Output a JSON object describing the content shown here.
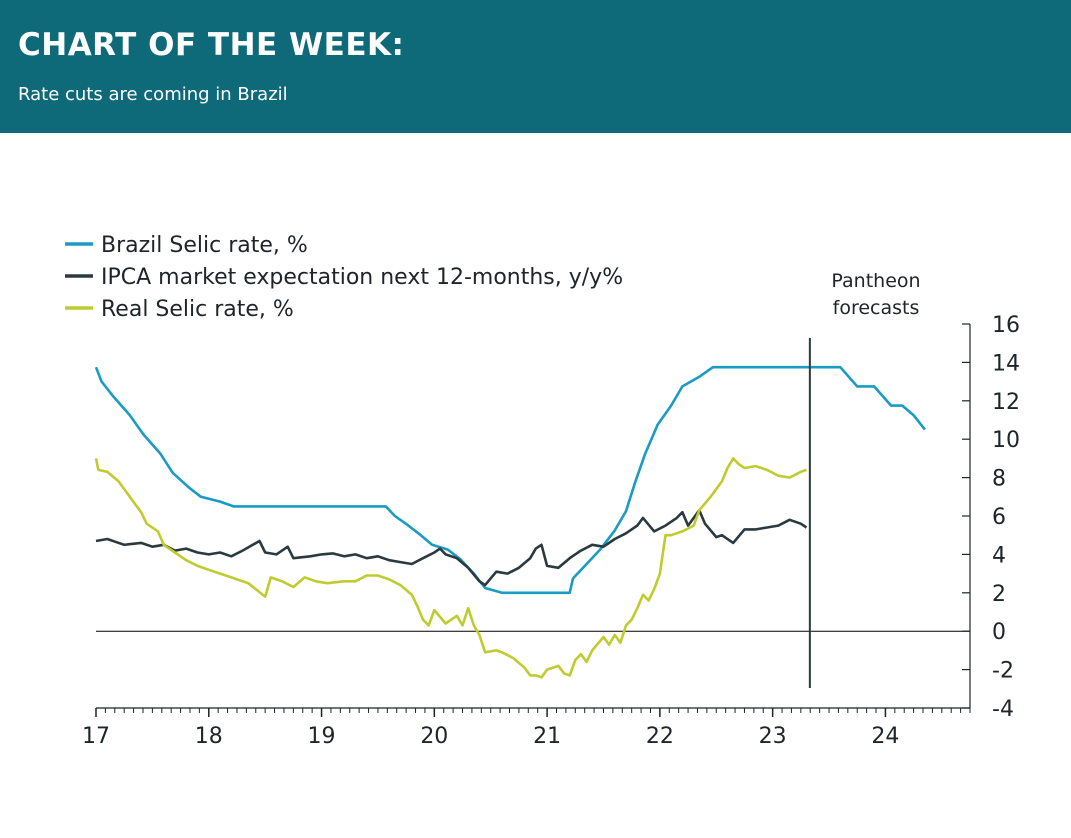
{
  "header": {
    "title": "CHART OF THE WEEK:",
    "subtitle": "Rate cuts are coming in Brazil"
  },
  "colors": {
    "banner": "#0e6a78",
    "selic": "#1a9bc4",
    "ipca": "#2a3a3e",
    "real": "#bfcc2e"
  },
  "chart_data": {
    "type": "line",
    "x_axis": {
      "min": 17,
      "max": 24.75,
      "ticks": [
        "17",
        "18",
        "19",
        "20",
        "21",
        "22",
        "23",
        "24"
      ]
    },
    "y_axis": {
      "side": "right",
      "min": -4,
      "max": 16,
      "ticks": [
        "16",
        "14",
        "12",
        "10",
        "8",
        "6",
        "4",
        "2",
        "0",
        "-2",
        "-4"
      ]
    },
    "grid": false,
    "legend_position": "top-left",
    "annotation": {
      "lines": [
        "Pantheon",
        "forecasts"
      ],
      "x": 23.33
    },
    "series": [
      {
        "name": "Brazil Selic rate, %",
        "color": "#1a9bc4",
        "points": [
          [
            17.0,
            13.75
          ],
          [
            17.05,
            13.0
          ],
          [
            17.15,
            12.25
          ],
          [
            17.3,
            11.25
          ],
          [
            17.42,
            10.25
          ],
          [
            17.57,
            9.25
          ],
          [
            17.68,
            8.25
          ],
          [
            17.82,
            7.5
          ],
          [
            17.93,
            7.0
          ],
          [
            18.1,
            6.75
          ],
          [
            18.22,
            6.5
          ],
          [
            19.57,
            6.5
          ],
          [
            19.65,
            6.0
          ],
          [
            19.77,
            5.5
          ],
          [
            19.88,
            5.0
          ],
          [
            19.98,
            4.5
          ],
          [
            20.12,
            4.25
          ],
          [
            20.23,
            3.75
          ],
          [
            20.35,
            3.0
          ],
          [
            20.45,
            2.25
          ],
          [
            20.6,
            2.0
          ],
          [
            21.2,
            2.0
          ],
          [
            21.23,
            2.75
          ],
          [
            21.35,
            3.5
          ],
          [
            21.47,
            4.25
          ],
          [
            21.6,
            5.25
          ],
          [
            21.7,
            6.25
          ],
          [
            21.78,
            7.75
          ],
          [
            21.87,
            9.25
          ],
          [
            21.98,
            10.75
          ],
          [
            22.1,
            11.75
          ],
          [
            22.2,
            12.75
          ],
          [
            22.35,
            13.25
          ],
          [
            22.47,
            13.75
          ],
          [
            23.6,
            13.75
          ],
          [
            23.75,
            12.75
          ],
          [
            23.9,
            12.75
          ],
          [
            24.05,
            11.75
          ],
          [
            24.15,
            11.75
          ],
          [
            24.25,
            11.25
          ],
          [
            24.35,
            10.5
          ]
        ]
      },
      {
        "name": "IPCA market expectation next 12-months, y/y%",
        "color": "#2a3a3e",
        "points": [
          [
            17.0,
            4.7
          ],
          [
            17.1,
            4.8
          ],
          [
            17.25,
            4.5
          ],
          [
            17.4,
            4.6
          ],
          [
            17.5,
            4.4
          ],
          [
            17.6,
            4.5
          ],
          [
            17.7,
            4.2
          ],
          [
            17.8,
            4.3
          ],
          [
            17.9,
            4.1
          ],
          [
            18.0,
            4.0
          ],
          [
            18.1,
            4.1
          ],
          [
            18.2,
            3.9
          ],
          [
            18.3,
            4.2
          ],
          [
            18.45,
            4.7
          ],
          [
            18.5,
            4.1
          ],
          [
            18.6,
            4.0
          ],
          [
            18.7,
            4.4
          ],
          [
            18.75,
            3.8
          ],
          [
            18.9,
            3.9
          ],
          [
            19.0,
            4.0
          ],
          [
            19.1,
            4.05
          ],
          [
            19.2,
            3.9
          ],
          [
            19.3,
            4.0
          ],
          [
            19.4,
            3.8
          ],
          [
            19.5,
            3.9
          ],
          [
            19.6,
            3.7
          ],
          [
            19.7,
            3.6
          ],
          [
            19.8,
            3.5
          ],
          [
            19.9,
            3.8
          ],
          [
            20.0,
            4.1
          ],
          [
            20.05,
            4.3
          ],
          [
            20.1,
            4.0
          ],
          [
            20.2,
            3.8
          ],
          [
            20.3,
            3.3
          ],
          [
            20.4,
            2.6
          ],
          [
            20.45,
            2.4
          ],
          [
            20.55,
            3.1
          ],
          [
            20.65,
            3.0
          ],
          [
            20.75,
            3.3
          ],
          [
            20.85,
            3.8
          ],
          [
            20.9,
            4.3
          ],
          [
            20.95,
            4.5
          ],
          [
            21.0,
            3.4
          ],
          [
            21.1,
            3.3
          ],
          [
            21.2,
            3.8
          ],
          [
            21.3,
            4.2
          ],
          [
            21.4,
            4.5
          ],
          [
            21.5,
            4.4
          ],
          [
            21.6,
            4.8
          ],
          [
            21.7,
            5.1
          ],
          [
            21.8,
            5.5
          ],
          [
            21.85,
            5.9
          ],
          [
            21.95,
            5.2
          ],
          [
            22.05,
            5.5
          ],
          [
            22.15,
            5.9
          ],
          [
            22.2,
            6.2
          ],
          [
            22.25,
            5.5
          ],
          [
            22.35,
            6.3
          ],
          [
            22.4,
            5.6
          ],
          [
            22.5,
            4.9
          ],
          [
            22.55,
            5.0
          ],
          [
            22.65,
            4.6
          ],
          [
            22.75,
            5.3
          ],
          [
            22.85,
            5.3
          ],
          [
            22.95,
            5.4
          ],
          [
            23.05,
            5.5
          ],
          [
            23.15,
            5.8
          ],
          [
            23.25,
            5.6
          ],
          [
            23.3,
            5.4
          ]
        ]
      },
      {
        "name": "Real Selic rate, %",
        "color": "#bfcc2e",
        "points": [
          [
            17.0,
            9.0
          ],
          [
            17.02,
            8.4
          ],
          [
            17.1,
            8.3
          ],
          [
            17.2,
            7.8
          ],
          [
            17.3,
            7.0
          ],
          [
            17.4,
            6.2
          ],
          [
            17.45,
            5.6
          ],
          [
            17.55,
            5.2
          ],
          [
            17.6,
            4.5
          ],
          [
            17.7,
            4.1
          ],
          [
            17.8,
            3.7
          ],
          [
            17.9,
            3.4
          ],
          [
            18.0,
            3.2
          ],
          [
            18.1,
            3.0
          ],
          [
            18.2,
            2.8
          ],
          [
            18.35,
            2.5
          ],
          [
            18.5,
            1.8
          ],
          [
            18.55,
            2.8
          ],
          [
            18.65,
            2.6
          ],
          [
            18.75,
            2.3
          ],
          [
            18.85,
            2.8
          ],
          [
            18.95,
            2.6
          ],
          [
            19.05,
            2.5
          ],
          [
            19.2,
            2.6
          ],
          [
            19.3,
            2.6
          ],
          [
            19.4,
            2.9
          ],
          [
            19.5,
            2.9
          ],
          [
            19.6,
            2.7
          ],
          [
            19.7,
            2.4
          ],
          [
            19.8,
            1.9
          ],
          [
            19.85,
            1.3
          ],
          [
            19.9,
            0.6
          ],
          [
            19.95,
            0.3
          ],
          [
            20.0,
            1.1
          ],
          [
            20.1,
            0.4
          ],
          [
            20.2,
            0.8
          ],
          [
            20.25,
            0.3
          ],
          [
            20.3,
            1.2
          ],
          [
            20.35,
            0.3
          ],
          [
            20.4,
            -0.2
          ],
          [
            20.45,
            -1.1
          ],
          [
            20.55,
            -1.0
          ],
          [
            20.6,
            -1.1
          ],
          [
            20.7,
            -1.4
          ],
          [
            20.8,
            -1.9
          ],
          [
            20.85,
            -2.3
          ],
          [
            20.9,
            -2.3
          ],
          [
            20.95,
            -2.4
          ],
          [
            21.0,
            -2.0
          ],
          [
            21.1,
            -1.8
          ],
          [
            21.15,
            -2.2
          ],
          [
            21.2,
            -2.3
          ],
          [
            21.25,
            -1.5
          ],
          [
            21.3,
            -1.2
          ],
          [
            21.35,
            -1.6
          ],
          [
            21.4,
            -1.0
          ],
          [
            21.5,
            -0.3
          ],
          [
            21.55,
            -0.7
          ],
          [
            21.6,
            -0.2
          ],
          [
            21.65,
            -0.6
          ],
          [
            21.7,
            0.3
          ],
          [
            21.75,
            0.6
          ],
          [
            21.8,
            1.2
          ],
          [
            21.85,
            1.9
          ],
          [
            21.9,
            1.6
          ],
          [
            21.95,
            2.2
          ],
          [
            22.0,
            3.0
          ],
          [
            22.05,
            5.0
          ],
          [
            22.1,
            5.0
          ],
          [
            22.2,
            5.2
          ],
          [
            22.3,
            5.5
          ],
          [
            22.35,
            6.3
          ],
          [
            22.45,
            7.0
          ],
          [
            22.55,
            7.8
          ],
          [
            22.6,
            8.5
          ],
          [
            22.65,
            9.0
          ],
          [
            22.7,
            8.7
          ],
          [
            22.75,
            8.5
          ],
          [
            22.85,
            8.6
          ],
          [
            22.95,
            8.4
          ],
          [
            23.05,
            8.1
          ],
          [
            23.15,
            8.0
          ],
          [
            23.25,
            8.3
          ],
          [
            23.3,
            8.4
          ]
        ]
      }
    ]
  }
}
